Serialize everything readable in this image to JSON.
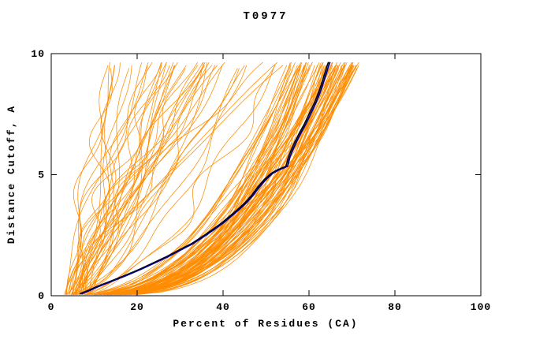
{
  "chart_data": {
    "type": "line",
    "title": "T0977",
    "xlabel": "Percent of Residues (CA)",
    "ylabel": "Distance Cutoff, A",
    "xlim": [
      0,
      100
    ],
    "ylim": [
      0,
      10
    ],
    "xticks": [
      0,
      20,
      40,
      60,
      80,
      100
    ],
    "yticks": [
      0,
      5,
      10
    ],
    "grid": false,
    "legend": "none",
    "colors": {
      "ensemble": "#FF8C00",
      "highlight": "#000080",
      "highlight_outline": "#000000",
      "axis": "#000000",
      "background": "#FFFFFF"
    },
    "ensemble": {
      "description": "predicted model cumulative CA-distance curves",
      "count": 130,
      "seed": 20977,
      "bundle_fraction": 0.62,
      "bundle_xtop_range": [
        55,
        72
      ],
      "spread_xtop_range": [
        10,
        55
      ],
      "x_start_range": [
        3,
        9
      ],
      "y_top_range": [
        9.5,
        9.7
      ]
    },
    "highlight_series": {
      "name": "selected-model",
      "points": [
        [
          7,
          0.08
        ],
        [
          9,
          0.22
        ],
        [
          11,
          0.38
        ],
        [
          13,
          0.52
        ],
        [
          15,
          0.66
        ],
        [
          17,
          0.8
        ],
        [
          19,
          0.95
        ],
        [
          21,
          1.1
        ],
        [
          24,
          1.35
        ],
        [
          27,
          1.6
        ],
        [
          30,
          1.88
        ],
        [
          33,
          2.15
        ],
        [
          36,
          2.5
        ],
        [
          38,
          2.75
        ],
        [
          40,
          3.0
        ],
        [
          42,
          3.3
        ],
        [
          44,
          3.6
        ],
        [
          45.5,
          3.85
        ],
        [
          47,
          4.15
        ],
        [
          48.5,
          4.5
        ],
        [
          50,
          4.8
        ],
        [
          51.5,
          5.05
        ],
        [
          53,
          5.2
        ],
        [
          55,
          5.35
        ],
        [
          55.6,
          5.75
        ],
        [
          56.3,
          6.05
        ],
        [
          57.2,
          6.4
        ],
        [
          58.2,
          6.75
        ],
        [
          59.3,
          7.1
        ],
        [
          60.5,
          7.55
        ],
        [
          61.7,
          8.0
        ],
        [
          62.8,
          8.5
        ],
        [
          63.7,
          9.0
        ],
        [
          64.5,
          9.45
        ],
        [
          64.9,
          9.65
        ]
      ]
    }
  }
}
